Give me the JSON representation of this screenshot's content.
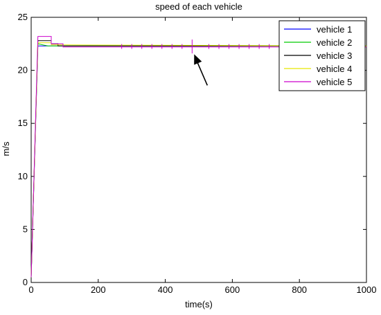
{
  "chart_data": {
    "type": "line",
    "title": "speed of each vehicle",
    "xlabel": "time(s)",
    "ylabel": "m/s",
    "xlim": [
      0,
      1000
    ],
    "ylim": [
      0,
      25
    ],
    "xticks": [
      0,
      200,
      400,
      600,
      800,
      1000
    ],
    "yticks": [
      0,
      5,
      10,
      15,
      20,
      25
    ],
    "grid": false,
    "legend_position": "top-right",
    "series": [
      {
        "name": "vehicle 1",
        "color": "#0000ff",
        "x": [
          0,
          20,
          50,
          1000
        ],
        "y": [
          0.5,
          22.3,
          22.3,
          22.3
        ]
      },
      {
        "name": "vehicle 2",
        "color": "#00cc00",
        "x": [
          0,
          20,
          50,
          1000
        ],
        "y": [
          0.5,
          22.5,
          22.3,
          22.3
        ]
      },
      {
        "name": "vehicle 3",
        "color": "#000000",
        "x": [
          0,
          20,
          60,
          60,
          80,
          80,
          1000
        ],
        "y": [
          0.5,
          22.8,
          22.8,
          22.5,
          22.5,
          22.3,
          22.3
        ]
      },
      {
        "name": "vehicle 4",
        "color": "#e6e600",
        "x": [
          0,
          20,
          60,
          60,
          80,
          1000
        ],
        "y": [
          0.5,
          22.6,
          22.6,
          22.4,
          22.4,
          22.3
        ]
      },
      {
        "name": "vehicle 5",
        "color": "#cc00cc",
        "x": [
          0,
          20,
          60,
          60,
          95,
          95,
          1000
        ],
        "y": [
          0.5,
          23.2,
          23.2,
          22.5,
          22.5,
          22.2,
          22.2
        ]
      }
    ],
    "oscillation_times": [
      270,
      300,
      330,
      360,
      390,
      420,
      450,
      480,
      530,
      560,
      590,
      620,
      650,
      680,
      710,
      740
    ],
    "annotation": {
      "type": "arrow",
      "target_x": 480,
      "target_y": 22.3
    }
  }
}
